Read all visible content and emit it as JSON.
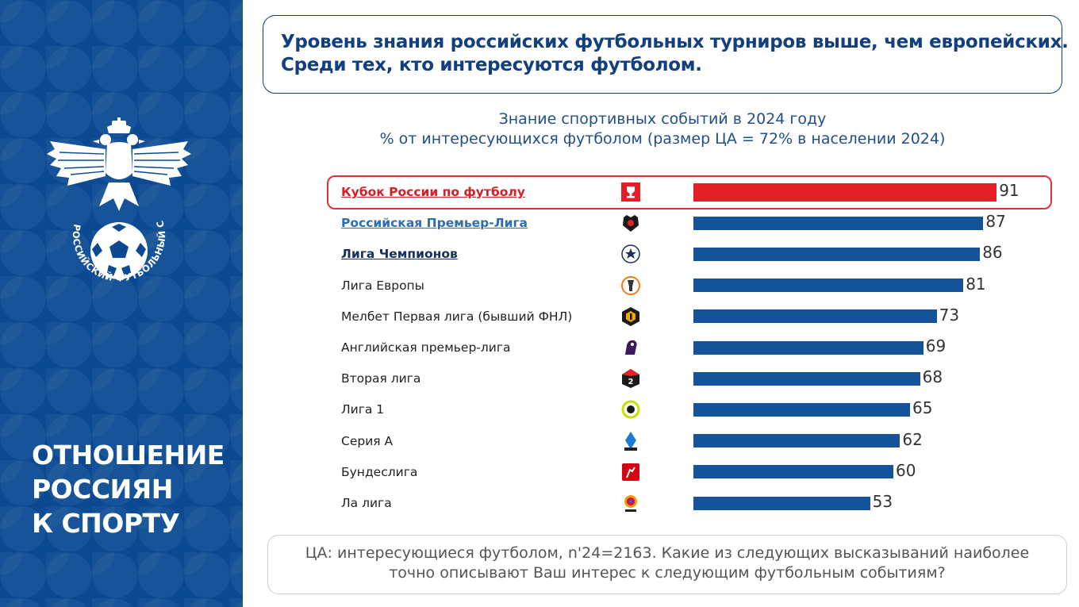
{
  "sidebar": {
    "logo_text": "РОССИЙСКИЙ ФУТБОЛЬНЫЙ СОЮЗ",
    "title_lines": [
      "ОТНОШЕНИЕ",
      "РОССИЯН",
      "К СПОРТУ"
    ]
  },
  "headline": {
    "line1": "Уровень знания российских футбольных турниров выше, чем европейских.",
    "line2": "Среди тех, кто интересуются футболом."
  },
  "colors": {
    "primary": "#14539a",
    "highlight": "#e31e26",
    "sidebar": "#0b4a92"
  },
  "chart_data": {
    "type": "bar",
    "orientation": "horizontal",
    "title": "Знание спортивных событий в 2024 году",
    "subtitle": "% от интересующихся футболом (размер ЦА = 72% в населении 2024)",
    "xlim": [
      0,
      100
    ],
    "grid": false,
    "categories": [
      "Кубок России по футболу",
      "Российская Премьер-Лига",
      "Лига Чемпионов",
      "Лига Европы",
      "Мелбет Первая лига (бывший ФНЛ)",
      "Английская премьер-лига",
      "Вторая лига",
      "Лига 1",
      "Серия А",
      "Бундеслига",
      "Ла лига"
    ],
    "values": [
      91,
      87,
      86,
      81,
      73,
      69,
      68,
      65,
      62,
      60,
      53
    ],
    "highlighted": "Кубок России по футболу",
    "icons": [
      "cup-icon",
      "rpl-bear-icon",
      "champions-league-icon",
      "europa-league-icon",
      "first-league-icon",
      "premier-league-lion-icon",
      "second-league-icon",
      "ligue1-icon",
      "serie-a-icon",
      "bundesliga-icon",
      "laliga-icon"
    ]
  },
  "footnote": {
    "line1": "ЦА: интересующиеся футболом, n'24=2163. Какие из следующих высказываний наиболее",
    "line2": "точно описывают Ваш интерес к следующим футбольным событиям?"
  }
}
